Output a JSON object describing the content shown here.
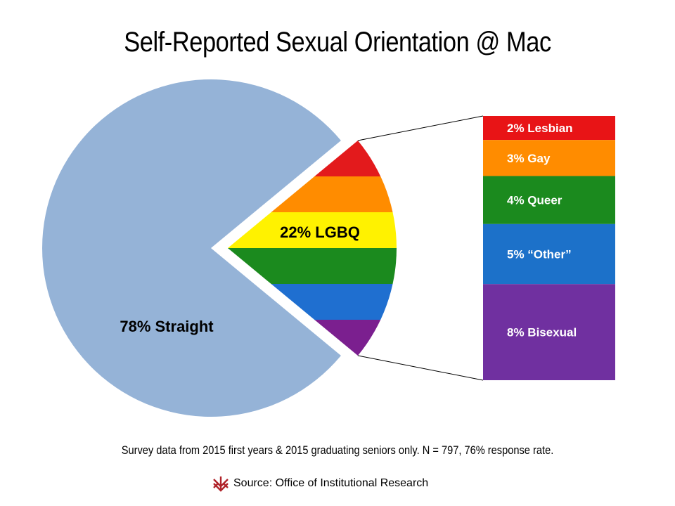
{
  "title": "Self-Reported Sexual Orientation @ Mac",
  "footnote": "Survey data from 2015 first years & 2015 graduating seniors only. N = 797, 76% response rate.",
  "source": "Source: Office of Institutional Research",
  "logo_icon": "macalester-crest-icon",
  "chart_data": [
    {
      "type": "pie",
      "slices": [
        {
          "label": "78% Straight",
          "value": 78,
          "color": "#95b3d7"
        },
        {
          "label": "22% LGBQ",
          "value": 22,
          "exploded": true,
          "fill": "rainbow-stripes"
        }
      ],
      "stripe_colors": [
        "#e31a1c",
        "#ff8c00",
        "#fff200",
        "#1b8a1e",
        "#1f6fd0",
        "#7b1f8f"
      ]
    },
    {
      "type": "bar",
      "stacked": true,
      "segments": [
        {
          "label": "2% Lesbian",
          "value": 2,
          "color": "#e81416"
        },
        {
          "label": "3% Gay",
          "value": 3,
          "color": "#ff8c00"
        },
        {
          "label": "4% Queer",
          "value": 4,
          "color": "#1b8a1e"
        },
        {
          "label": "5% “Other”",
          "value": 5,
          "color": "#1c71c9"
        },
        {
          "label": "8% Bisexual",
          "value": 8,
          "color": "#7030a0"
        }
      ]
    }
  ]
}
